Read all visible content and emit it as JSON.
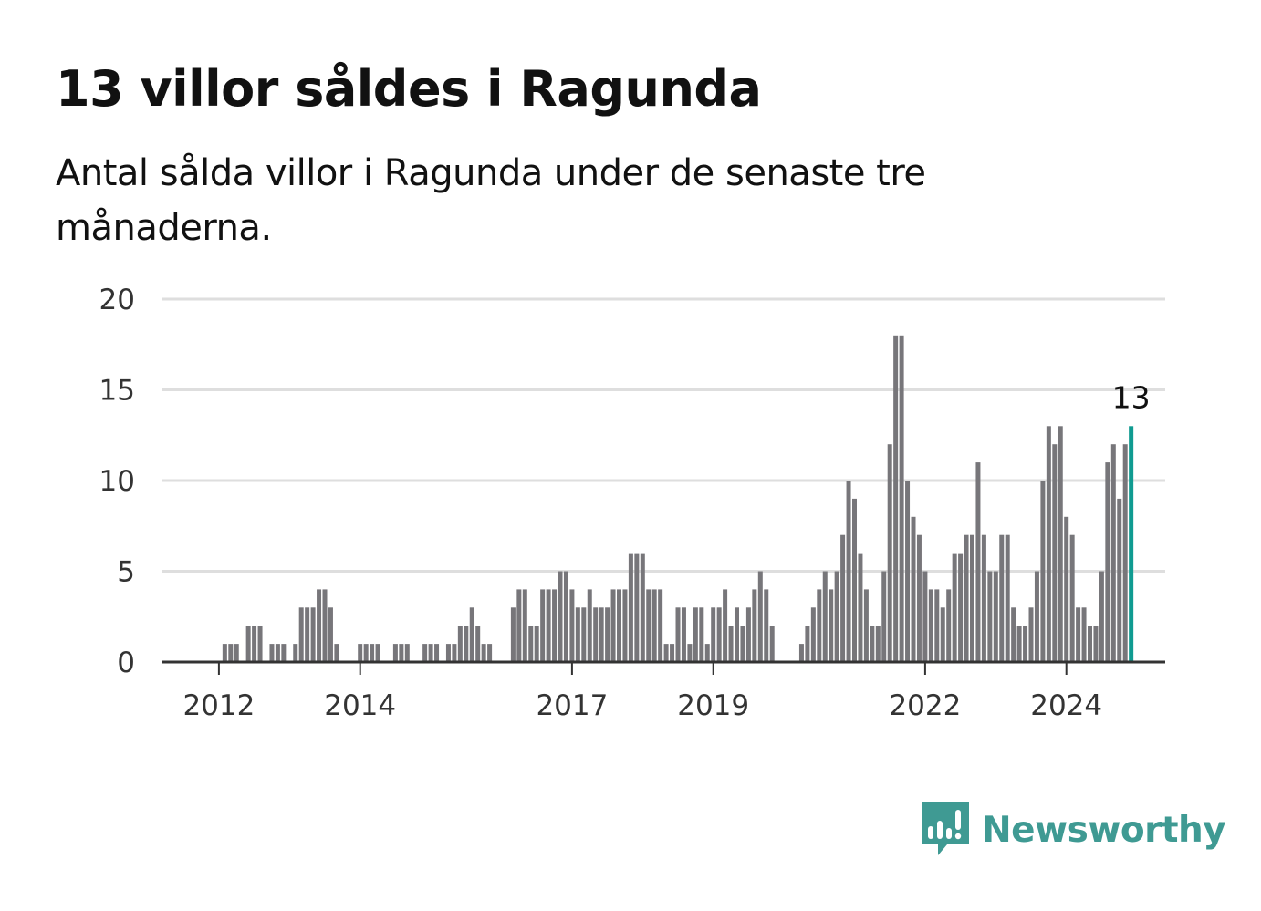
{
  "title": "13 villor såldes i Ragunda",
  "subtitle": "Antal sålda villor i Ragunda under de senaste tre månaderna.",
  "brand": {
    "name": "Newsworthy",
    "color": "#3f9a93",
    "icon": "newsworthy-logo-icon"
  },
  "colors": {
    "bar": "#77767a",
    "highlight": "#109b91",
    "grid": "#dedede",
    "axis": "#333333"
  },
  "chart_data": {
    "type": "bar",
    "title": "13 villor såldes i Ragunda",
    "ylim": [
      0,
      20
    ],
    "yticks": [
      0,
      5,
      10,
      15,
      20
    ],
    "xticks": [
      {
        "label": "2012",
        "index": 10
      },
      {
        "label": "2014",
        "index": 34
      },
      {
        "label": "2017",
        "index": 70
      },
      {
        "label": "2019",
        "index": 94
      },
      {
        "label": "2022",
        "index": 130
      },
      {
        "label": "2024",
        "index": 154
      }
    ],
    "grid": true,
    "start_month": "2011-05",
    "end_month": "2024-10",
    "values": [
      0,
      0,
      0,
      0,
      0,
      0,
      0,
      0,
      0,
      0,
      0,
      1,
      1,
      1,
      0,
      2,
      2,
      2,
      0,
      1,
      1,
      1,
      0,
      1,
      3,
      3,
      3,
      4,
      4,
      3,
      1,
      0,
      0,
      0,
      1,
      1,
      1,
      1,
      0,
      0,
      1,
      1,
      1,
      0,
      0,
      1,
      1,
      1,
      0,
      1,
      1,
      2,
      2,
      3,
      2,
      1,
      1,
      0,
      0,
      0,
      3,
      4,
      4,
      2,
      2,
      4,
      4,
      4,
      5,
      5,
      4,
      3,
      3,
      4,
      3,
      3,
      3,
      4,
      4,
      4,
      6,
      6,
      6,
      4,
      4,
      4,
      1,
      1,
      3,
      3,
      1,
      3,
      3,
      1,
      3,
      3,
      4,
      2,
      3,
      2,
      3,
      4,
      5,
      4,
      2,
      0,
      0,
      0,
      0,
      1,
      2,
      3,
      4,
      5,
      4,
      5,
      7,
      10,
      9,
      6,
      4,
      2,
      2,
      5,
      12,
      18,
      18,
      10,
      8,
      7,
      5,
      4,
      4,
      3,
      4,
      6,
      6,
      7,
      7,
      11,
      7,
      5,
      5,
      7,
      7,
      3,
      2,
      2,
      3,
      5,
      10,
      13,
      12,
      13,
      8,
      7,
      3,
      3,
      2,
      2,
      5,
      11,
      12,
      9,
      12,
      13
    ],
    "highlight": {
      "value": 13,
      "label": "13"
    }
  }
}
